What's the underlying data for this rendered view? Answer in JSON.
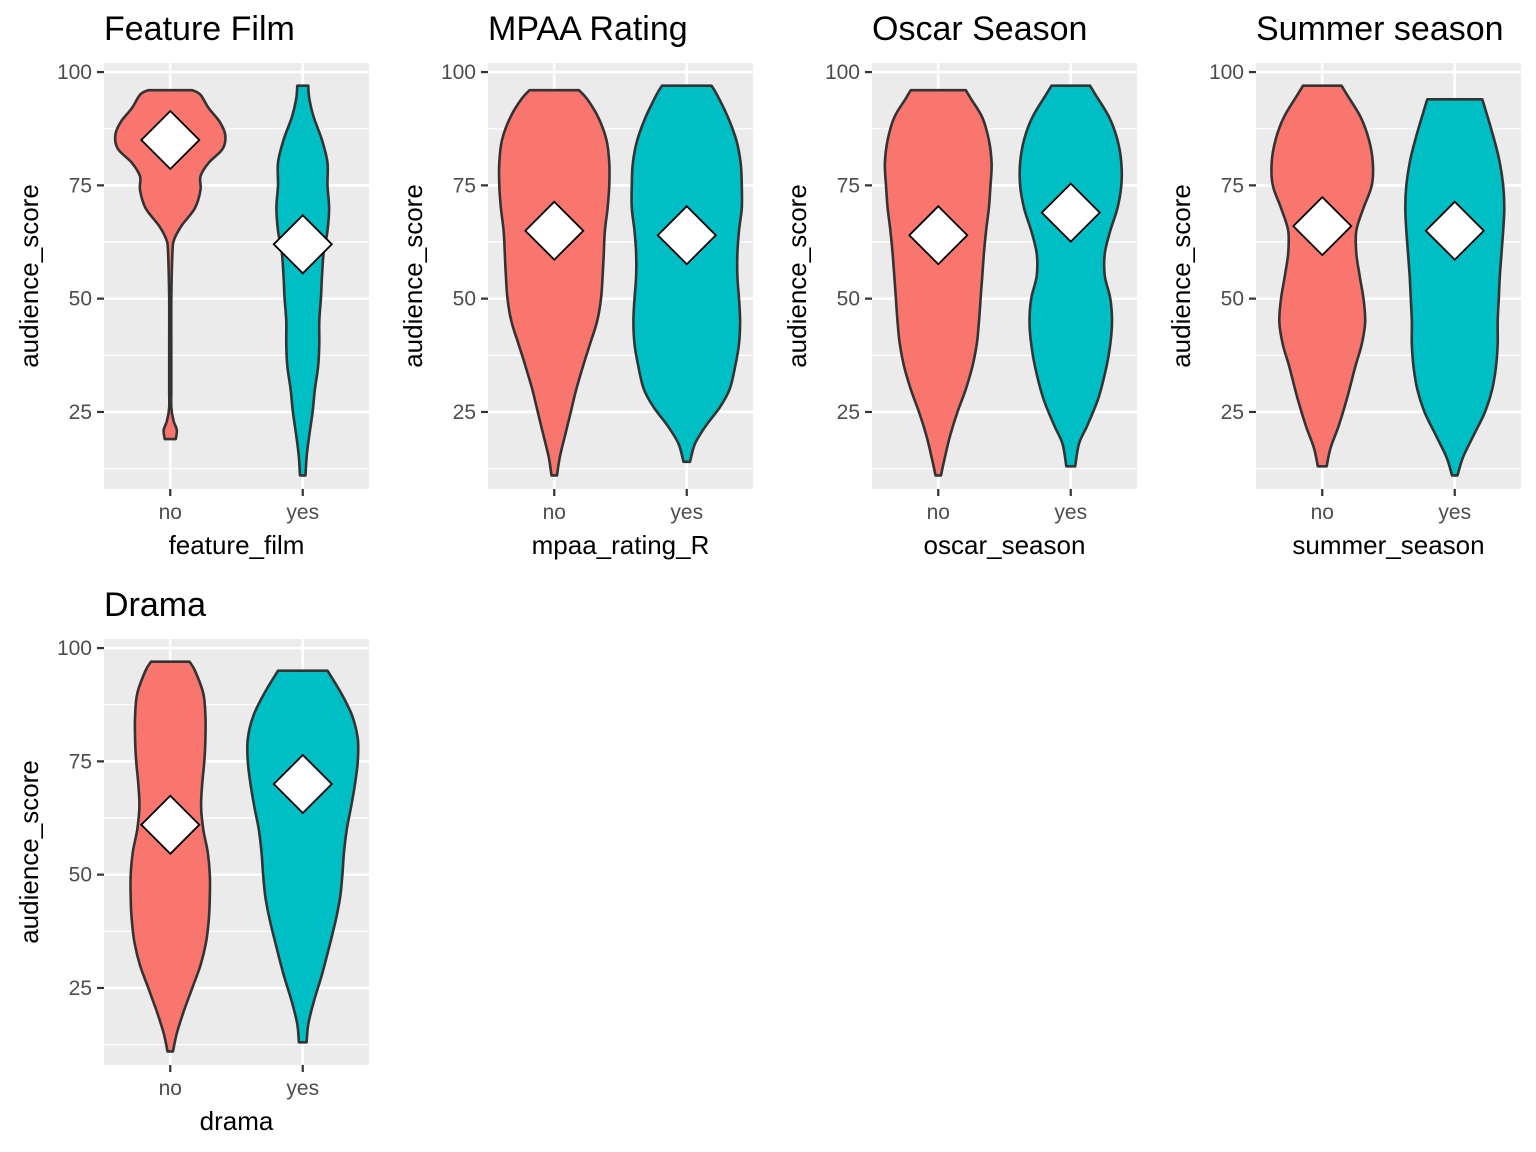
{
  "chart_data": [
    {
      "type": "violin",
      "title": "Feature Film",
      "xlabel": "feature_film",
      "ylabel": "audience_score",
      "ylim": [
        8,
        102
      ],
      "yticks": [
        25,
        50,
        75,
        100
      ],
      "categories": [
        "no",
        "yes"
      ],
      "colors": [
        "#F8766D",
        "#00BFC4"
      ],
      "means": [
        85,
        62
      ],
      "ranges": [
        [
          19,
          96
        ],
        [
          11,
          97
        ]
      ],
      "density": [
        [
          [
            19,
            0.1
          ],
          [
            21,
            0.12
          ],
          [
            23,
            0.06
          ],
          [
            26,
            0.02
          ],
          [
            30,
            0.02
          ],
          [
            40,
            0.02
          ],
          [
            50,
            0.02
          ],
          [
            60,
            0.04
          ],
          [
            63,
            0.07
          ],
          [
            66,
            0.2
          ],
          [
            70,
            0.45
          ],
          [
            74,
            0.55
          ],
          [
            77,
            0.55
          ],
          [
            80,
            0.7
          ],
          [
            83,
            0.95
          ],
          [
            86,
            1.0
          ],
          [
            89,
            0.9
          ],
          [
            92,
            0.7
          ],
          [
            95,
            0.55
          ],
          [
            96,
            0.4
          ]
        ],
        [
          [
            11,
            0.05
          ],
          [
            15,
            0.07
          ],
          [
            20,
            0.12
          ],
          [
            25,
            0.18
          ],
          [
            30,
            0.22
          ],
          [
            35,
            0.28
          ],
          [
            40,
            0.3
          ],
          [
            45,
            0.3
          ],
          [
            50,
            0.33
          ],
          [
            55,
            0.35
          ],
          [
            60,
            0.38
          ],
          [
            65,
            0.45
          ],
          [
            70,
            0.48
          ],
          [
            75,
            0.45
          ],
          [
            80,
            0.45
          ],
          [
            85,
            0.35
          ],
          [
            90,
            0.2
          ],
          [
            94,
            0.12
          ],
          [
            97,
            0.1
          ]
        ]
      ]
    },
    {
      "type": "violin",
      "title": "MPAA Rating",
      "xlabel": "mpaa_rating_R",
      "ylabel": "audience_score",
      "ylim": [
        8,
        102
      ],
      "yticks": [
        25,
        50,
        75,
        100
      ],
      "categories": [
        "no",
        "yes"
      ],
      "colors": [
        "#F8766D",
        "#00BFC4"
      ],
      "means": [
        65,
        64
      ],
      "ranges": [
        [
          11,
          96
        ],
        [
          14,
          97
        ]
      ],
      "density": [
        [
          [
            11,
            0.05
          ],
          [
            15,
            0.1
          ],
          [
            20,
            0.2
          ],
          [
            25,
            0.3
          ],
          [
            30,
            0.4
          ],
          [
            35,
            0.52
          ],
          [
            40,
            0.65
          ],
          [
            45,
            0.78
          ],
          [
            50,
            0.85
          ],
          [
            55,
            0.88
          ],
          [
            60,
            0.9
          ],
          [
            65,
            0.92
          ],
          [
            70,
            0.97
          ],
          [
            75,
            1.0
          ],
          [
            80,
            1.0
          ],
          [
            85,
            0.95
          ],
          [
            90,
            0.8
          ],
          [
            94,
            0.6
          ],
          [
            96,
            0.45
          ]
        ],
        [
          [
            14,
            0.06
          ],
          [
            18,
            0.15
          ],
          [
            22,
            0.35
          ],
          [
            26,
            0.6
          ],
          [
            30,
            0.78
          ],
          [
            35,
            0.88
          ],
          [
            40,
            0.95
          ],
          [
            45,
            0.97
          ],
          [
            50,
            0.95
          ],
          [
            55,
            0.92
          ],
          [
            60,
            0.92
          ],
          [
            65,
            0.95
          ],
          [
            70,
            1.0
          ],
          [
            75,
            1.0
          ],
          [
            80,
            0.98
          ],
          [
            85,
            0.9
          ],
          [
            90,
            0.75
          ],
          [
            95,
            0.55
          ],
          [
            97,
            0.45
          ]
        ]
      ]
    },
    {
      "type": "violin",
      "title": "Oscar Season",
      "xlabel": "oscar_season",
      "ylabel": "audience_score",
      "ylim": [
        8,
        102
      ],
      "yticks": [
        25,
        50,
        75,
        100
      ],
      "categories": [
        "no",
        "yes"
      ],
      "colors": [
        "#F8766D",
        "#00BFC4"
      ],
      "means": [
        64,
        69
      ],
      "ranges": [
        [
          11,
          96
        ],
        [
          13,
          97
        ]
      ],
      "density": [
        [
          [
            11,
            0.05
          ],
          [
            15,
            0.12
          ],
          [
            20,
            0.22
          ],
          [
            25,
            0.35
          ],
          [
            30,
            0.5
          ],
          [
            35,
            0.62
          ],
          [
            40,
            0.7
          ],
          [
            45,
            0.74
          ],
          [
            50,
            0.77
          ],
          [
            55,
            0.8
          ],
          [
            60,
            0.83
          ],
          [
            65,
            0.87
          ],
          [
            70,
            0.92
          ],
          [
            75,
            0.95
          ],
          [
            80,
            0.97
          ],
          [
            85,
            0.92
          ],
          [
            90,
            0.8
          ],
          [
            94,
            0.6
          ],
          [
            96,
            0.5
          ]
        ],
        [
          [
            13,
            0.08
          ],
          [
            18,
            0.15
          ],
          [
            22,
            0.3
          ],
          [
            28,
            0.5
          ],
          [
            35,
            0.65
          ],
          [
            40,
            0.72
          ],
          [
            45,
            0.75
          ],
          [
            50,
            0.72
          ],
          [
            55,
            0.62
          ],
          [
            60,
            0.62
          ],
          [
            65,
            0.72
          ],
          [
            70,
            0.85
          ],
          [
            75,
            0.92
          ],
          [
            80,
            0.92
          ],
          [
            85,
            0.85
          ],
          [
            90,
            0.7
          ],
          [
            95,
            0.45
          ],
          [
            97,
            0.35
          ]
        ]
      ]
    },
    {
      "type": "violin",
      "title": "Summer season",
      "xlabel": "summer_season",
      "ylabel": "audience_score",
      "ylim": [
        8,
        102
      ],
      "yticks": [
        25,
        50,
        75,
        100
      ],
      "categories": [
        "no",
        "yes"
      ],
      "colors": [
        "#F8766D",
        "#00BFC4"
      ],
      "means": [
        66,
        65
      ],
      "ranges": [
        [
          13,
          97
        ],
        [
          11,
          94
        ]
      ],
      "density": [
        [
          [
            13,
            0.08
          ],
          [
            17,
            0.15
          ],
          [
            22,
            0.3
          ],
          [
            28,
            0.45
          ],
          [
            35,
            0.6
          ],
          [
            40,
            0.72
          ],
          [
            45,
            0.78
          ],
          [
            50,
            0.75
          ],
          [
            55,
            0.68
          ],
          [
            60,
            0.62
          ],
          [
            65,
            0.62
          ],
          [
            70,
            0.75
          ],
          [
            75,
            0.9
          ],
          [
            80,
            0.92
          ],
          [
            85,
            0.85
          ],
          [
            90,
            0.7
          ],
          [
            95,
            0.45
          ],
          [
            97,
            0.35
          ]
        ],
        [
          [
            11,
            0.05
          ],
          [
            15,
            0.15
          ],
          [
            20,
            0.35
          ],
          [
            25,
            0.55
          ],
          [
            30,
            0.68
          ],
          [
            35,
            0.75
          ],
          [
            40,
            0.78
          ],
          [
            45,
            0.78
          ],
          [
            50,
            0.8
          ],
          [
            55,
            0.82
          ],
          [
            60,
            0.85
          ],
          [
            65,
            0.88
          ],
          [
            70,
            0.9
          ],
          [
            75,
            0.88
          ],
          [
            80,
            0.82
          ],
          [
            85,
            0.72
          ],
          [
            90,
            0.6
          ],
          [
            94,
            0.5
          ]
        ]
      ]
    },
    {
      "type": "violin",
      "title": "Drama",
      "xlabel": "drama",
      "ylabel": "audience_score",
      "ylim": [
        8,
        102
      ],
      "yticks": [
        25,
        50,
        75,
        100
      ],
      "categories": [
        "no",
        "yes"
      ],
      "colors": [
        "#F8766D",
        "#00BFC4"
      ],
      "means": [
        61,
        70
      ],
      "ranges": [
        [
          11,
          97
        ],
        [
          13,
          95
        ]
      ],
      "density": [
        [
          [
            11,
            0.05
          ],
          [
            15,
            0.12
          ],
          [
            20,
            0.25
          ],
          [
            25,
            0.4
          ],
          [
            30,
            0.55
          ],
          [
            35,
            0.65
          ],
          [
            40,
            0.7
          ],
          [
            45,
            0.72
          ],
          [
            50,
            0.72
          ],
          [
            55,
            0.68
          ],
          [
            60,
            0.6
          ],
          [
            65,
            0.56
          ],
          [
            70,
            0.58
          ],
          [
            75,
            0.62
          ],
          [
            80,
            0.64
          ],
          [
            85,
            0.64
          ],
          [
            90,
            0.6
          ],
          [
            95,
            0.45
          ],
          [
            97,
            0.35
          ]
        ],
        [
          [
            13,
            0.07
          ],
          [
            17,
            0.1
          ],
          [
            22,
            0.2
          ],
          [
            28,
            0.35
          ],
          [
            35,
            0.5
          ],
          [
            40,
            0.6
          ],
          [
            45,
            0.68
          ],
          [
            50,
            0.72
          ],
          [
            55,
            0.75
          ],
          [
            60,
            0.8
          ],
          [
            65,
            0.88
          ],
          [
            70,
            0.95
          ],
          [
            75,
            1.0
          ],
          [
            80,
            1.0
          ],
          [
            85,
            0.9
          ],
          [
            90,
            0.7
          ],
          [
            95,
            0.45
          ]
        ]
      ]
    }
  ]
}
